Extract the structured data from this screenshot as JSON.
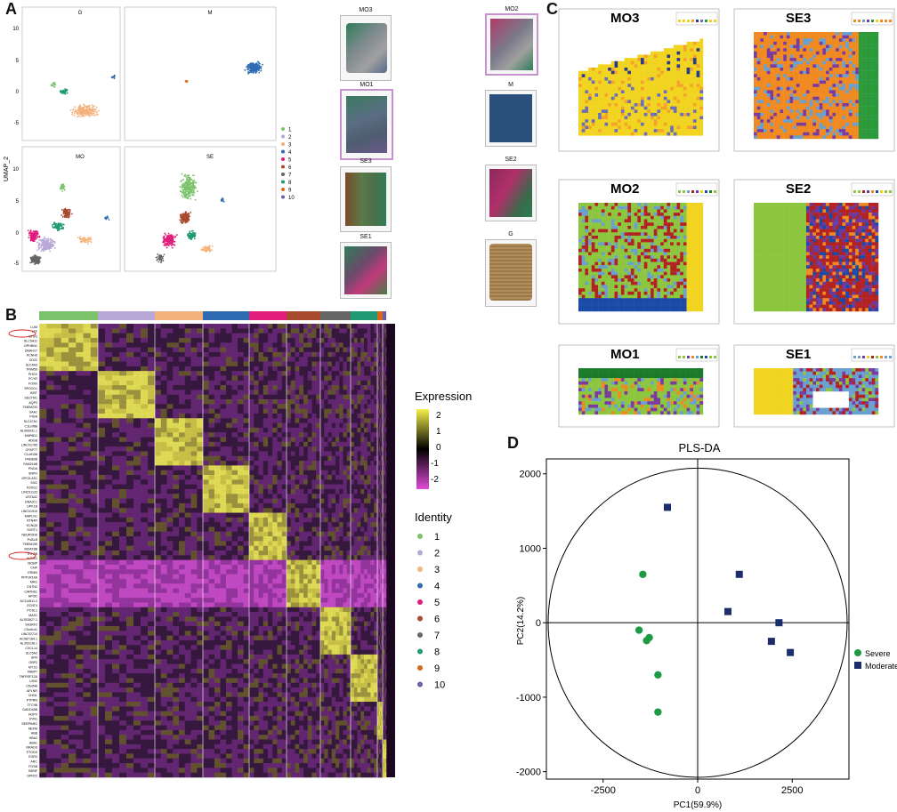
{
  "panels": {
    "A": "A",
    "B": "B",
    "C": "C",
    "D": "D"
  },
  "umap": {
    "ylabel": "UMAP_2",
    "subplots": [
      "G",
      "M",
      "MO",
      "SE"
    ],
    "yticks_top": [
      "10",
      "5",
      "0",
      "-5"
    ],
    "yticks_bottom": [
      "10",
      "5",
      "0",
      "-5"
    ],
    "legend": [
      "1",
      "2",
      "3",
      "4",
      "5",
      "6",
      "7",
      "8",
      "9",
      "10"
    ],
    "colors": [
      "#7cc26b",
      "#b8a8d8",
      "#f3b37c",
      "#2f6bb0",
      "#e01d7b",
      "#a84a2e",
      "#666666",
      "#219a73",
      "#d9681f",
      "#6a5fa8"
    ]
  },
  "thumbs": {
    "left": [
      "MO3",
      "MO1",
      "SE3",
      "SE1"
    ],
    "right": [
      "MO2",
      "M",
      "SE2",
      "G"
    ]
  },
  "heatmap": {
    "expression_title": "Expression",
    "expression_ticks": [
      "2",
      "1",
      "0",
      "-1",
      "-2"
    ],
    "identity_title": "Identity",
    "identity_items": [
      "1",
      "2",
      "3",
      "4",
      "5",
      "6",
      "7",
      "8",
      "9",
      "10"
    ],
    "genes": [
      "LUM",
      "LTF",
      "CTSG",
      "SLC5A11",
      "GPHNN1",
      "DNAH17",
      "KCNH6",
      "CD22",
      "SLC4A3",
      "TRIM59",
      "PHOX",
      "PCYR",
      "FOXN",
      "SPOCD1",
      "KIBT",
      "SECTM1",
      "AQP3",
      "TMEM233",
      "SAA1",
      "PIGB",
      "SLC47A1",
      "C11orf88",
      "AL009031.1",
      "MAP6D1",
      "ADGB",
      "LINC01765",
      "CFAP77",
      "C1orf158",
      "FAM83B",
      "FAM216B",
      "PNOA",
      "SNPH",
      "GPC5-AS1",
      "SIX2",
      "FOXG1",
      "LINC01133",
      "USTA42",
      "DNAJC1",
      "UPK1B",
      "LINC01915",
      "MAPLN1",
      "RTN4R",
      "KCNQ5",
      "SCRT1",
      "NEUROD6",
      "PVALB",
      "TMEM155",
      "MOAT8B",
      "TRH2B",
      "KCNS1",
      "MOBP",
      "CNP",
      "ERMN",
      "PPP1R14A",
      "MAG",
      "CNTN2",
      "CARNS1",
      "APOD",
      "AC114811.2",
      "GCNT4",
      "POSL1",
      "MAS1",
      "ALS03627.1",
      "SH3RF2",
      "C9orf141",
      "LINC02714",
      "AC087164.1",
      "AL353138.1",
      "CXCL14",
      "SLC5A3",
      "SFN",
      "GBP2",
      "MT1G",
      "FABP7",
      "TNFRSF12A",
      "LXN2",
      "C5orf46",
      "APLNR",
      "CHI3L",
      "PTPRN",
      "TTC9B",
      "GADD45B",
      "HOPX",
      "SYN1",
      "SERPINE2",
      "NEFM",
      "HBB",
      "HBA2",
      "HBA1",
      "NRADS",
      "PTGDS",
      "EGR4",
      "ARC",
      "FOSB",
      "BDNF",
      "GPR22"
    ]
  },
  "spatial": {
    "panels": [
      "MO3",
      "SE3",
      "MO2",
      "SE2",
      "MO1",
      "SE1"
    ]
  },
  "chart_data": {
    "type": "scatter",
    "title": "PLS-DA",
    "xlabel": "PC1(59.9%)",
    "ylabel": "PC2(14.2%)",
    "xlim": [
      -4000,
      4000
    ],
    "ylim": [
      -2100,
      2200
    ],
    "xticks": [
      -2500,
      0,
      2500
    ],
    "yticks": [
      2000,
      1000,
      0,
      -1000,
      -2000
    ],
    "legend_position": "right",
    "series": [
      {
        "name": "Severe",
        "marker": "circle",
        "color": "#1e9a44",
        "points": [
          [
            -1450,
            650
          ],
          [
            -1550,
            -100
          ],
          [
            -1350,
            -240
          ],
          [
            -1280,
            -200
          ],
          [
            -1050,
            -700
          ],
          [
            -1050,
            -1200
          ]
        ]
      },
      {
        "name": "Moderate",
        "marker": "square",
        "color": "#1b2d6b",
        "points": [
          [
            -800,
            1550
          ],
          [
            1100,
            650
          ],
          [
            800,
            150
          ],
          [
            2150,
            0
          ],
          [
            1950,
            -250
          ],
          [
            2450,
            -400
          ]
        ]
      }
    ],
    "ellipse": {
      "cx": 0,
      "cy": 0,
      "rx": 4000,
      "ry": 2100
    }
  }
}
